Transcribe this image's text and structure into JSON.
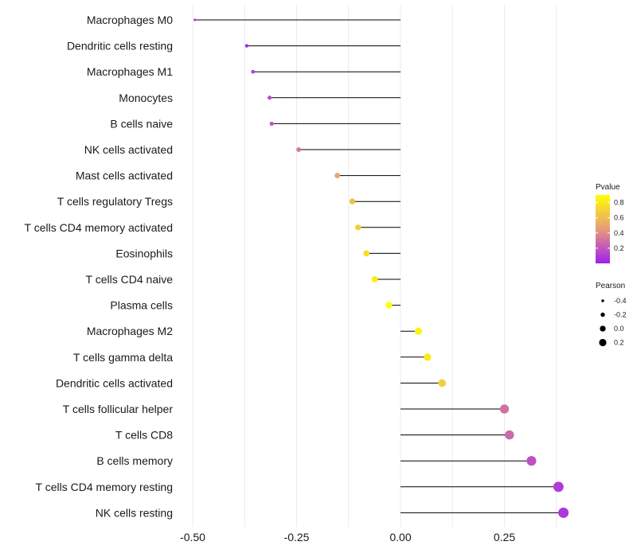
{
  "chart_data": {
    "type": "lollipop",
    "title": "",
    "xlabel": "",
    "ylabel": "",
    "xlim": [
      -0.5,
      0.4
    ],
    "x_ticks": [
      -0.5,
      -0.25,
      0.0,
      0.25
    ],
    "x_tick_labels": [
      "-0.50",
      "-0.25",
      "0.00",
      "0.25"
    ],
    "categories": [
      "Macrophages M0",
      "Dendritic cells resting",
      "Macrophages M1",
      "Monocytes",
      "B cells naive",
      "NK cells activated",
      "Mast cells activated",
      "T cells regulatory  Tregs ",
      "T cells CD4 memory activated",
      "Eosinophils",
      "T cells CD4 naive",
      "Plasma cells",
      "Macrophages M2",
      "T cells gamma delta",
      "Dendritic cells activated",
      "T cells follicular helper",
      "T cells CD8",
      "B cells memory",
      "T cells CD4 memory resting",
      "NK cells resting"
    ],
    "pearson": [
      -0.495,
      -0.37,
      -0.355,
      -0.315,
      -0.31,
      -0.245,
      -0.152,
      -0.116,
      -0.102,
      -0.082,
      -0.062,
      -0.028,
      0.043,
      0.065,
      0.1,
      0.25,
      0.262,
      0.315,
      0.38,
      0.392
    ],
    "pvalue": [
      0.02,
      0.06,
      0.09,
      0.16,
      0.18,
      0.33,
      0.5,
      0.62,
      0.68,
      0.75,
      0.82,
      0.92,
      0.85,
      0.8,
      0.68,
      0.3,
      0.27,
      0.18,
      0.1,
      0.09
    ],
    "legend_color": {
      "title": "Pvalue",
      "ticks": [
        0.2,
        0.4,
        0.6,
        0.8
      ],
      "tick_labels": [
        "0.2",
        "0.4",
        "0.6",
        "0.8"
      ],
      "range": [
        0.0,
        0.9
      ],
      "color_low": "#a020f0",
      "color_mid": "#e89a7a",
      "color_high": "#ffff00"
    },
    "legend_size": {
      "title": "Pearson",
      "values": [
        -0.4,
        -0.2,
        0.0,
        0.2
      ],
      "labels": [
        "-0.4",
        "-0.2",
        "0.0",
        "0.2"
      ]
    }
  }
}
